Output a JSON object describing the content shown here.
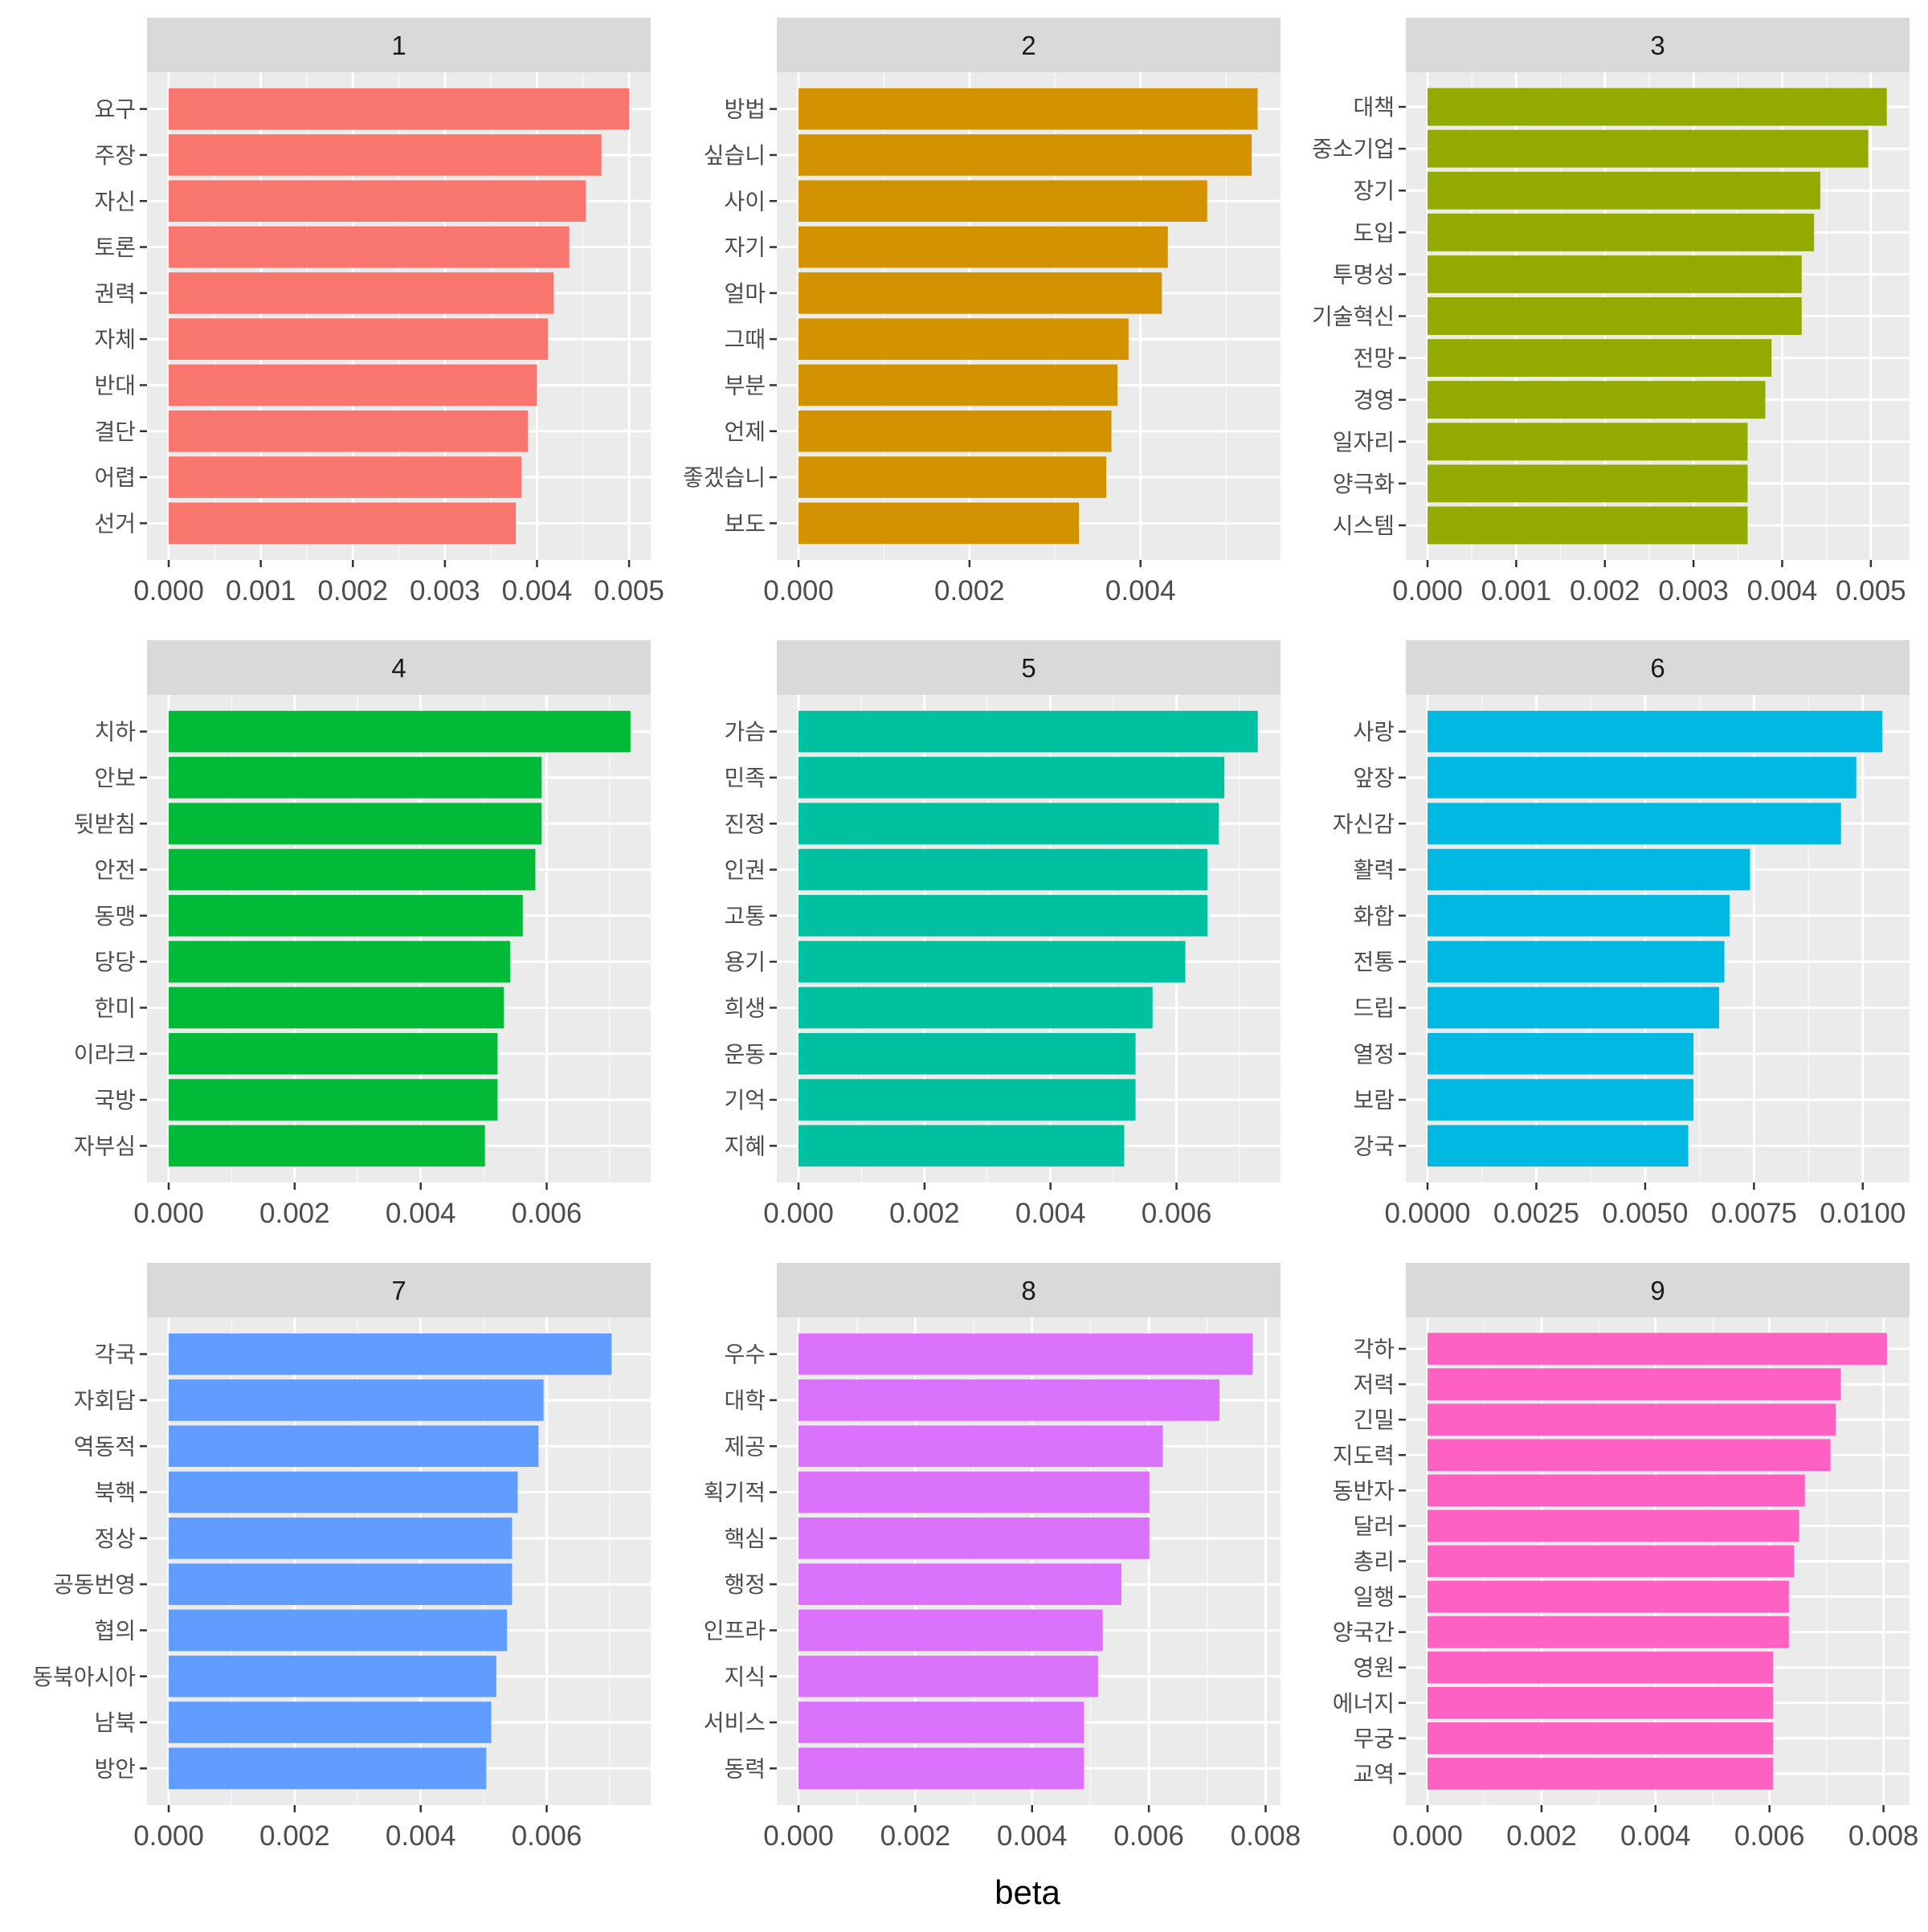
{
  "chart_data": {
    "type": "bar",
    "orientation": "horizontal",
    "facet_layout": "3x3",
    "xlabel": "beta",
    "grid": true,
    "legend": "none",
    "panels": [
      {
        "panel": "1",
        "color": "#F8766D",
        "xlim": [
          0,
          0.0052
        ],
        "xticks": [
          0,
          0.001,
          0.002,
          0.003,
          0.004,
          0.005
        ],
        "xtick_labels": [
          "0.000",
          "0.001",
          "0.002",
          "0.003",
          "0.004",
          "0.005"
        ],
        "categories": [
          "요구",
          "주장",
          "자신",
          "토론",
          "권력",
          "자체",
          "반대",
          "결단",
          "어렵",
          "선거"
        ],
        "values": [
          0.005,
          0.0047,
          0.00453,
          0.00435,
          0.00418,
          0.00412,
          0.004,
          0.0039,
          0.00383,
          0.00377
        ]
      },
      {
        "panel": "2",
        "color": "#D39200",
        "xlim": [
          0,
          0.0056
        ],
        "xticks": [
          0,
          0.002,
          0.004
        ],
        "xtick_labels": [
          "0.000",
          "0.002",
          "0.004"
        ],
        "categories": [
          "방법",
          "싶습니",
          "사이",
          "자기",
          "얼마",
          "그때",
          "부분",
          "언제",
          "좋겠습니",
          "보도"
        ],
        "values": [
          0.00537,
          0.0053,
          0.00478,
          0.00432,
          0.00425,
          0.00386,
          0.00373,
          0.00366,
          0.0036,
          0.00328
        ]
      },
      {
        "panel": "3",
        "color": "#93AA00",
        "xlim": [
          0,
          0.0054
        ],
        "xticks": [
          0,
          0.001,
          0.002,
          0.003,
          0.004,
          0.005
        ],
        "xtick_labels": [
          "0.000",
          "0.001",
          "0.002",
          "0.003",
          "0.004",
          "0.005"
        ],
        "categories": [
          "대책",
          "중소기업",
          "장기",
          "도입",
          "투명성",
          "기술혁신",
          "전망",
          "경영",
          "일자리",
          "양극화",
          "시스템"
        ],
        "values": [
          0.00518,
          0.00497,
          0.00443,
          0.00436,
          0.00422,
          0.00422,
          0.00388,
          0.00381,
          0.00361,
          0.00361,
          0.00361
        ]
      },
      {
        "panel": "4",
        "color": "#00BA38",
        "xlim": [
          0,
          0.0076
        ],
        "xticks": [
          0,
          0.002,
          0.004,
          0.006
        ],
        "xtick_labels": [
          "0.000",
          "0.002",
          "0.004",
          "0.006"
        ],
        "categories": [
          "치하",
          "안보",
          "뒷받침",
          "안전",
          "동맹",
          "당당",
          "한미",
          "이라크",
          "국방",
          "자부심"
        ],
        "values": [
          0.00733,
          0.00592,
          0.00592,
          0.00582,
          0.00562,
          0.00542,
          0.00532,
          0.00522,
          0.00522,
          0.00502
        ]
      },
      {
        "panel": "5",
        "color": "#00C19F",
        "xlim": [
          0,
          0.0076
        ],
        "xticks": [
          0,
          0.002,
          0.004,
          0.006
        ],
        "xtick_labels": [
          "0.000",
          "0.002",
          "0.004",
          "0.006"
        ],
        "categories": [
          "가슴",
          "민족",
          "진정",
          "인권",
          "고통",
          "용기",
          "희생",
          "운동",
          "기억",
          "지혜"
        ],
        "values": [
          0.00729,
          0.00676,
          0.00667,
          0.00649,
          0.00649,
          0.00614,
          0.00562,
          0.00535,
          0.00535,
          0.00517
        ]
      },
      {
        "panel": "6",
        "color": "#00B9E3",
        "xlim": [
          0,
          0.011
        ],
        "xticks": [
          0,
          0.0025,
          0.005,
          0.0075,
          0.01
        ],
        "xtick_labels": [
          "0.0000",
          "0.0025",
          "0.0050",
          "0.0075",
          "0.0100"
        ],
        "categories": [
          "사랑",
          "앞장",
          "자신감",
          "활력",
          "화합",
          "전통",
          "드립",
          "열정",
          "보람",
          "강국"
        ],
        "values": [
          0.01045,
          0.00985,
          0.0095,
          0.00741,
          0.00694,
          0.00682,
          0.0067,
          0.00611,
          0.00611,
          0.00599
        ]
      },
      {
        "panel": "7",
        "color": "#619CFF",
        "xlim": [
          0,
          0.0076
        ],
        "xticks": [
          0,
          0.002,
          0.004,
          0.006
        ],
        "xtick_labels": [
          "0.000",
          "0.002",
          "0.004",
          "0.006"
        ],
        "categories": [
          "각국",
          "자회담",
          "역동적",
          "북핵",
          "정상",
          "공동번영",
          "협의",
          "동북아시아",
          "남북",
          "방안"
        ],
        "values": [
          0.00703,
          0.00595,
          0.00587,
          0.00554,
          0.00545,
          0.00545,
          0.00537,
          0.0052,
          0.00512,
          0.00504
        ]
      },
      {
        "panel": "8",
        "color": "#DB72FB",
        "xlim": [
          0,
          0.0082
        ],
        "xticks": [
          0,
          0.002,
          0.004,
          0.006,
          0.008
        ],
        "xtick_labels": [
          "0.000",
          "0.002",
          "0.004",
          "0.006",
          "0.008"
        ],
        "categories": [
          "우수",
          "대학",
          "제공",
          "획기적",
          "핵심",
          "행정",
          "인프라",
          "지식",
          "서비스",
          "동력"
        ],
        "values": [
          0.00778,
          0.00721,
          0.00624,
          0.00601,
          0.00601,
          0.00553,
          0.00521,
          0.00513,
          0.00489,
          0.00489
        ]
      },
      {
        "panel": "9",
        "color": "#FF61C3",
        "xlim": [
          0,
          0.0084
        ],
        "xticks": [
          0,
          0.002,
          0.004,
          0.006,
          0.008
        ],
        "xtick_labels": [
          "0.000",
          "0.002",
          "0.004",
          "0.006",
          "0.008"
        ],
        "categories": [
          "각하",
          "저력",
          "긴밀",
          "지도력",
          "동반자",
          "달러",
          "총리",
          "일행",
          "양국간",
          "영원",
          "에너지",
          "무궁",
          "교역"
        ],
        "values": [
          0.00806,
          0.00725,
          0.00716,
          0.00707,
          0.00662,
          0.00652,
          0.00643,
          0.00634,
          0.00634,
          0.00606,
          0.00606,
          0.00606,
          0.00606
        ]
      }
    ]
  }
}
